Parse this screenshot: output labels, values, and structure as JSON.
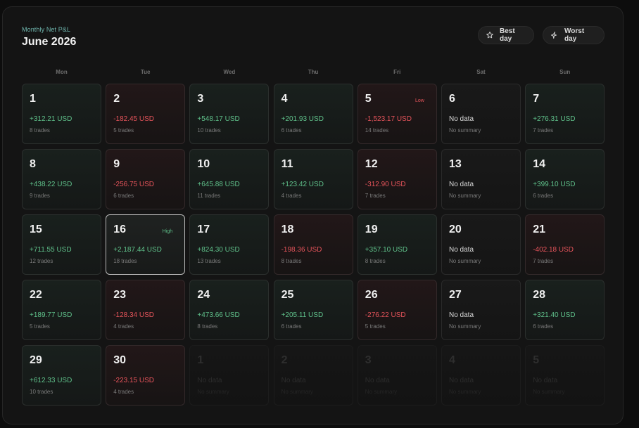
{
  "header": {
    "subtitle": "Monthly Net P&L",
    "title": "June 2026"
  },
  "actions": {
    "best_label": "Best day",
    "best_icon": "star-icon",
    "worst_label": "Worst day",
    "worst_icon": "sparkle-icon"
  },
  "weekdays": [
    "Mon",
    "Tue",
    "Wed",
    "Thu",
    "Fri",
    "Sat",
    "Sun"
  ],
  "colors": {
    "positive": "#5fc08a",
    "negative": "#e5545a",
    "accent": "#6fb6ae"
  },
  "days": [
    {
      "day": "1",
      "pnl": "+312.21 USD",
      "trades": "8 trades",
      "type": "pos"
    },
    {
      "day": "2",
      "pnl": "-182.45 USD",
      "trades": "5 trades",
      "type": "neg"
    },
    {
      "day": "3",
      "pnl": "+548.17 USD",
      "trades": "10 trades",
      "type": "pos"
    },
    {
      "day": "4",
      "pnl": "+201.93 USD",
      "trades": "6 trades",
      "type": "pos"
    },
    {
      "day": "5",
      "pnl": "-1,523.17 USD",
      "trades": "14 trades",
      "type": "neg",
      "badge": "Low"
    },
    {
      "day": "6",
      "pnl": "No data",
      "trades": "No summary",
      "type": "nodata"
    },
    {
      "day": "7",
      "pnl": "+276.31 USD",
      "trades": "7 trades",
      "type": "pos"
    },
    {
      "day": "8",
      "pnl": "+438.22 USD",
      "trades": "9 trades",
      "type": "pos"
    },
    {
      "day": "9",
      "pnl": "-256.75 USD",
      "trades": "6 trades",
      "type": "neg"
    },
    {
      "day": "10",
      "pnl": "+645.88 USD",
      "trades": "11 trades",
      "type": "pos"
    },
    {
      "day": "11",
      "pnl": "+123.42 USD",
      "trades": "4 trades",
      "type": "pos"
    },
    {
      "day": "12",
      "pnl": "-312.90 USD",
      "trades": "7 trades",
      "type": "neg"
    },
    {
      "day": "13",
      "pnl": "No data",
      "trades": "No summary",
      "type": "nodata"
    },
    {
      "day": "14",
      "pnl": "+399.10 USD",
      "trades": "6 trades",
      "type": "pos"
    },
    {
      "day": "15",
      "pnl": "+711.55 USD",
      "trades": "12 trades",
      "type": "pos"
    },
    {
      "day": "16",
      "pnl": "+2,187.44 USD",
      "trades": "18 trades",
      "type": "pos",
      "badge": "High",
      "selected": true
    },
    {
      "day": "17",
      "pnl": "+824.30 USD",
      "trades": "13 trades",
      "type": "pos"
    },
    {
      "day": "18",
      "pnl": "-198.36 USD",
      "trades": "8 trades",
      "type": "neg"
    },
    {
      "day": "19",
      "pnl": "+357.10 USD",
      "trades": "8 trades",
      "type": "pos"
    },
    {
      "day": "20",
      "pnl": "No data",
      "trades": "No summary",
      "type": "nodata"
    },
    {
      "day": "21",
      "pnl": "-402.18 USD",
      "trades": "7 trades",
      "type": "neg"
    },
    {
      "day": "22",
      "pnl": "+189.77 USD",
      "trades": "5 trades",
      "type": "pos"
    },
    {
      "day": "23",
      "pnl": "-128.34 USD",
      "trades": "4 trades",
      "type": "neg"
    },
    {
      "day": "24",
      "pnl": "+473.66 USD",
      "trades": "8 trades",
      "type": "pos"
    },
    {
      "day": "25",
      "pnl": "+205.11 USD",
      "trades": "6 trades",
      "type": "pos"
    },
    {
      "day": "26",
      "pnl": "-276.22 USD",
      "trades": "5 trades",
      "type": "neg"
    },
    {
      "day": "27",
      "pnl": "No data",
      "trades": "No summary",
      "type": "nodata"
    },
    {
      "day": "28",
      "pnl": "+321.40 USD",
      "trades": "6 trades",
      "type": "pos"
    },
    {
      "day": "29",
      "pnl": "+612.33 USD",
      "trades": "10 trades",
      "type": "pos"
    },
    {
      "day": "30",
      "pnl": "-223.15 USD",
      "trades": "4 trades",
      "type": "neg"
    },
    {
      "day": "1",
      "pnl": "No data",
      "trades": "No summary",
      "type": "outside"
    },
    {
      "day": "2",
      "pnl": "No data",
      "trades": "No summary",
      "type": "outside"
    },
    {
      "day": "3",
      "pnl": "No data",
      "trades": "No summary",
      "type": "outside"
    },
    {
      "day": "4",
      "pnl": "No data",
      "trades": "No summary",
      "type": "outside"
    },
    {
      "day": "5",
      "pnl": "No data",
      "trades": "No summary",
      "type": "outside"
    }
  ]
}
